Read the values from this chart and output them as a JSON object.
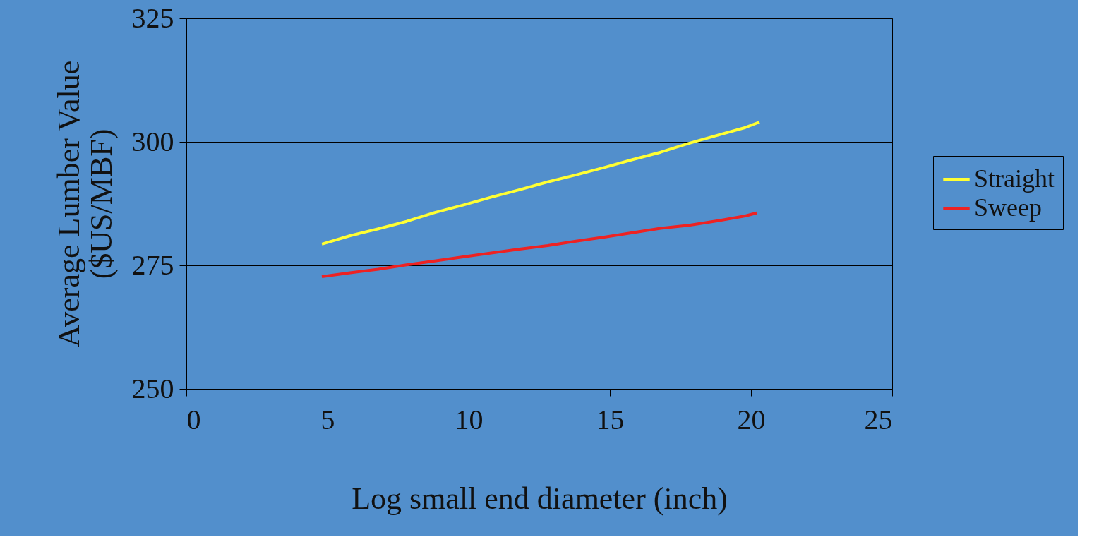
{
  "chart_data": {
    "type": "line",
    "xlabel": "Log small end diameter (inch)",
    "ylabel": "Average Lumber Value\n($US/MBF)",
    "xlim": [
      0,
      25
    ],
    "xticks": [
      0,
      5,
      10,
      15,
      20,
      25
    ],
    "ylim": [
      250,
      325
    ],
    "yticks": [
      250,
      275,
      300,
      325
    ],
    "grid": "y",
    "legend": "right",
    "marker": "none",
    "line_style": "solid",
    "series": [
      {
        "name": "Straight",
        "color": "#ffff33",
        "x": [
          4.8,
          5.8,
          6.8,
          7.8,
          8.8,
          9.8,
          10.8,
          11.8,
          12.8,
          13.8,
          14.8,
          15.8,
          16.8,
          17.8,
          18.8,
          19.8,
          20.3
        ],
        "values": [
          279.3,
          281.0,
          282.4,
          283.9,
          285.7,
          287.2,
          288.8,
          290.3,
          291.9,
          293.3,
          294.8,
          296.4,
          297.9,
          299.7,
          301.3,
          302.9,
          304.0
        ]
      },
      {
        "name": "Sweep",
        "color": "#ee2222",
        "x": [
          4.8,
          5.8,
          6.8,
          7.8,
          8.8,
          9.8,
          10.8,
          11.8,
          12.8,
          13.8,
          14.8,
          15.8,
          16.8,
          17.8,
          18.8,
          19.8,
          20.2
        ],
        "values": [
          272.7,
          273.5,
          274.2,
          275.1,
          275.9,
          276.7,
          277.5,
          278.3,
          279.0,
          279.9,
          280.7,
          281.6,
          282.5,
          283.1,
          284.0,
          285.0,
          285.6
        ]
      }
    ]
  }
}
